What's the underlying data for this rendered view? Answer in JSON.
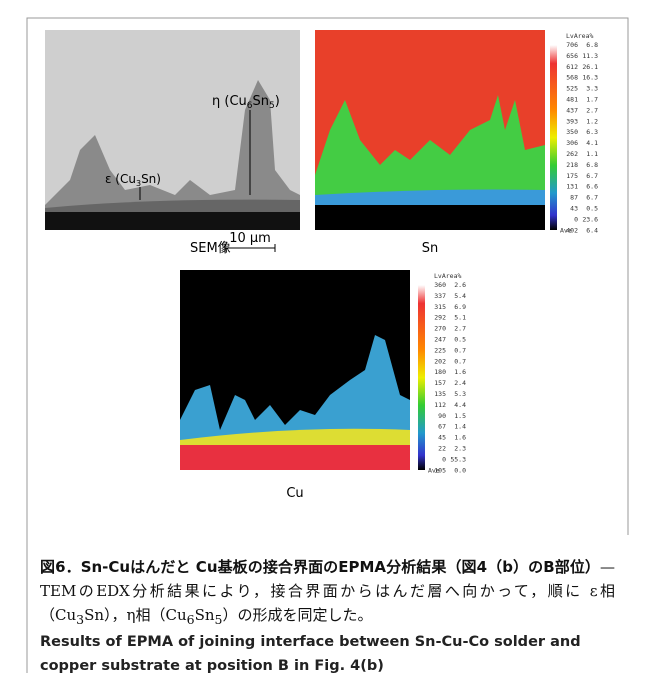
{
  "figure": {
    "sem": {
      "label": "SEM像",
      "scale_bar": "10 μm",
      "eta": [
        "η (Cu",
        "6",
        "Sn",
        "5",
        ")"
      ],
      "epsilon": [
        "ε (Cu",
        "3",
        "Sn)"
      ]
    },
    "sn_map": {
      "label": "Sn",
      "legend_header": "LvArea%",
      "levels": [
        "706",
        "656",
        "612",
        "568",
        "525",
        "481",
        "437",
        "393",
        "350",
        "306",
        "262",
        "218",
        "175",
        "131",
        "87",
        "43",
        "0"
      ],
      "area": [
        "6.8",
        "11.3",
        "26.1",
        "16.3",
        "3.3",
        "1.7",
        "2.7",
        "1.2",
        "6.3",
        "4.1",
        "1.1",
        "6.8",
        "6.7",
        "6.6",
        "6.7",
        "0.5",
        "23.6"
      ],
      "ave_label": "Ave",
      "ave": "402",
      "ave_area": "6.4"
    },
    "cu_map": {
      "label": "Cu",
      "legend_header": "LvArea%",
      "levels": [
        "360",
        "337",
        "315",
        "292",
        "270",
        "247",
        "225",
        "202",
        "180",
        "157",
        "135",
        "112",
        "90",
        "67",
        "45",
        "22",
        "0"
      ],
      "area": [
        "2.6",
        "5.4",
        "6.9",
        "5.1",
        "2.7",
        "0.5",
        "0.7",
        "0.7",
        "1.6",
        "2.4",
        "5.3",
        "4.4",
        "1.5",
        "1.4",
        "1.6",
        "2.3",
        "55.3"
      ],
      "ave_label": "Ave",
      "ave": "105",
      "ave_area": "0.0"
    }
  },
  "caption_jp": {
    "bold": "図6．Sn-Cuはんだと Cu基板の接合界面のEPMA分析結果（図4（b）のB部位）",
    "parts": [
      "— TEMのEDX分析結果により，接合界面からはんだ層へ向かって，順に ε相（Cu",
      "3",
      "Sn），η相（Cu",
      "6",
      "Sn",
      "5",
      "）の形成を同定した。"
    ]
  },
  "caption_en": "Results of EPMA of joining interface between Sn-Cu-Co solder and copper substrate at position B in Fig. 4(b)"
}
